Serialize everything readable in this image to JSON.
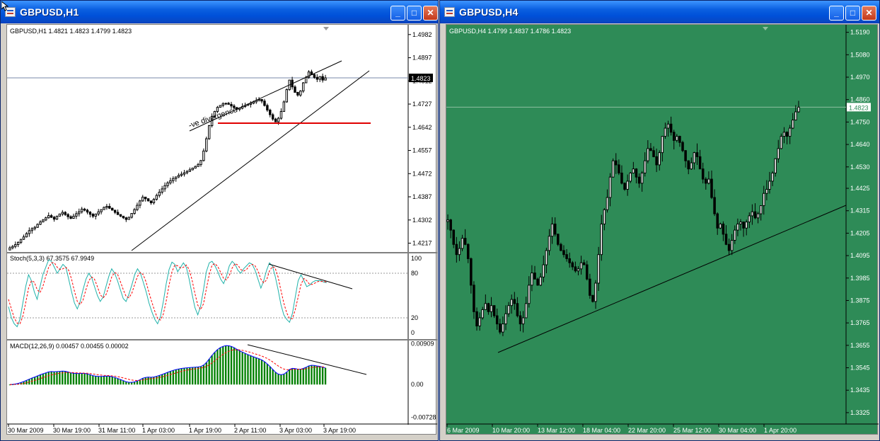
{
  "windows": [
    {
      "title": "GBPUSD,H1",
      "buttons": [
        "minimize",
        "maximize",
        "close"
      ]
    },
    {
      "title": "GBPUSD,H4",
      "buttons": [
        "minimize",
        "maximize",
        "close"
      ]
    }
  ],
  "chart_data": [
    {
      "type": "candlestick",
      "symbol_label": "GBPUSD,H1  1.4821 1.4823 1.4799 1.4823",
      "y_ticks": [
        "1.4982",
        "1.4897",
        "1.4812",
        "1.4727",
        "1.4642",
        "1.4557",
        "1.4472",
        "1.4387",
        "1.4302",
        "1.4217"
      ],
      "ylim": [
        1.4195,
        1.501
      ],
      "current_price_label": "1.4823",
      "current_price": 1.4823,
      "x_ticks": [
        "30 Mar 2009",
        "30 Mar 19:00",
        "31 Mar 11:00",
        "1 Apr 03:00",
        "1 Apr 19:00",
        "2 Apr 11:00",
        "3 Apr 03:00",
        "3 Apr 19:00"
      ],
      "annotation": "-ve divergence",
      "support_level": 1.4657,
      "closes": [
        1.42,
        1.4205,
        1.4212,
        1.422,
        1.4231,
        1.424,
        1.4252,
        1.4263,
        1.427,
        1.4275,
        1.4286,
        1.4295,
        1.4302,
        1.431,
        1.4318,
        1.4312,
        1.4305,
        1.4316,
        1.4324,
        1.433,
        1.4322,
        1.4314,
        1.4308,
        1.4316,
        1.4325,
        1.4332,
        1.4342,
        1.4338,
        1.4331,
        1.4323,
        1.4316,
        1.4324,
        1.4332,
        1.434,
        1.4348,
        1.4352,
        1.4345,
        1.4338,
        1.433,
        1.4322,
        1.4316,
        1.431,
        1.4304,
        1.4312,
        1.4326,
        1.434,
        1.4356,
        1.4372,
        1.4386,
        1.438,
        1.4372,
        1.4365,
        1.4378,
        1.4392,
        1.4404,
        1.4416,
        1.4428,
        1.4438,
        1.4446,
        1.4454,
        1.446,
        1.4466,
        1.447,
        1.4475,
        1.448,
        1.4486,
        1.4492,
        1.4498,
        1.4505,
        1.452,
        1.4555,
        1.46,
        1.4648,
        1.4682,
        1.47,
        1.4715,
        1.4722,
        1.4728,
        1.473,
        1.4726,
        1.472,
        1.4714,
        1.4708,
        1.4712,
        1.4718,
        1.4722,
        1.4726,
        1.473,
        1.4735,
        1.474,
        1.4744,
        1.4738,
        1.4722,
        1.4705,
        1.4688,
        1.4672,
        1.4662,
        1.4675,
        1.47,
        1.4735,
        1.478,
        1.4815,
        1.479,
        1.477,
        1.476,
        1.4775,
        1.4805,
        1.4825,
        1.4845,
        1.4835,
        1.4825,
        1.4818,
        1.4828,
        1.4815,
        1.4823
      ],
      "indicators": [
        {
          "name": "Stoch(5,3,3) 67.3575 67.9949",
          "y_ticks": [
            "100",
            "80",
            "20",
            "0"
          ],
          "ylim": [
            0,
            100
          ],
          "levels": [
            80,
            20
          ],
          "main": [
            35,
            20,
            12,
            8,
            18,
            40,
            62,
            78,
            70,
            55,
            45,
            62,
            78,
            88,
            98,
            96,
            88,
            80,
            86,
            92,
            88,
            72,
            55,
            40,
            32,
            42,
            58,
            72,
            80,
            74,
            62,
            50,
            42,
            48,
            62,
            76,
            86,
            80,
            70,
            58,
            46,
            42,
            52,
            64,
            78,
            86,
            80,
            68,
            55,
            40,
            28,
            18,
            12,
            22,
            42,
            66,
            85,
            95,
            92,
            82,
            88,
            94,
            88,
            72,
            52,
            34,
            24,
            36,
            58,
            82,
            94,
            96,
            90,
            82,
            72,
            66,
            76,
            90,
            96,
            92,
            84,
            80,
            86,
            90,
            94,
            92,
            84,
            72,
            60,
            70,
            84,
            94,
            90,
            76,
            58,
            38,
            24,
            18,
            14,
            26,
            48,
            70,
            78,
            70,
            62,
            64,
            68,
            70,
            70,
            70,
            68,
            67.36
          ],
          "signal": [
            45,
            32,
            20,
            13,
            12,
            22,
            40,
            60,
            70,
            68,
            58,
            54,
            62,
            76,
            88,
            94,
            94,
            88,
            85,
            86,
            88,
            84,
            72,
            56,
            42,
            38,
            44,
            58,
            70,
            75,
            72,
            62,
            51,
            47,
            51,
            62,
            75,
            81,
            79,
            69,
            58,
            49,
            47,
            53,
            65,
            76,
            81,
            78,
            68,
            54,
            41,
            29,
            19,
            17,
            25,
            43,
            64,
            82,
            91,
            90,
            87,
            88,
            91,
            85,
            71,
            53,
            37,
            31,
            39,
            59,
            78,
            91,
            93,
            89,
            81,
            73,
            71,
            77,
            87,
            93,
            91,
            85,
            83,
            85,
            90,
            92,
            90,
            83,
            72,
            67,
            71,
            83,
            89,
            87,
            75,
            57,
            40,
            27,
            19,
            19,
            31,
            48,
            65,
            73,
            70,
            65,
            65,
            67,
            69,
            69,
            69,
            67.99
          ]
        },
        {
          "name": "MACD(12,26,9) 0.00457 0.00455 0.00002",
          "y_ticks": [
            "0.00909",
            "0.00",
            "-0.00728"
          ],
          "ylim": [
            -0.0075,
            0.0093
          ]
        }
      ]
    },
    {
      "type": "candlestick",
      "symbol_label": "GBPUSD,H4  1.4799 1.4837 1.4786 1.4823",
      "y_ticks": [
        "1.5190",
        "1.5080",
        "1.4970",
        "1.4860",
        "1.4750",
        "1.4640",
        "1.4530",
        "1.4425",
        "1.4315",
        "1.4205",
        "1.4095",
        "1.3985",
        "1.3875",
        "1.3765",
        "1.3655",
        "1.3545",
        "1.3435",
        "1.3325"
      ],
      "ylim": [
        1.329,
        1.522
      ],
      "current_price_label": "1.4823",
      "current_price": 1.4823,
      "x_ticks": [
        "6 Mar 2009",
        "10 Mar 20:00",
        "13 Mar 12:00",
        "18 Mar 04:00",
        "22 Mar 20:00",
        "25 Mar 12:00",
        "30 Mar 04:00",
        "1 Apr 20:00"
      ],
      "closes": [
        1.427,
        1.422,
        1.415,
        1.41,
        1.413,
        1.418,
        1.415,
        1.408,
        1.395,
        1.382,
        1.375,
        1.379,
        1.383,
        1.386,
        1.382,
        1.385,
        1.38,
        1.376,
        1.372,
        1.376,
        1.381,
        1.385,
        1.388,
        1.386,
        1.38,
        1.376,
        1.379,
        1.386,
        1.395,
        1.401,
        1.398,
        1.395,
        1.399,
        1.405,
        1.412,
        1.419,
        1.425,
        1.42,
        1.415,
        1.412,
        1.41,
        1.408,
        1.406,
        1.404,
        1.402,
        1.403,
        1.406,
        1.405,
        1.398,
        1.39,
        1.387,
        1.396,
        1.41,
        1.425,
        1.432,
        1.438,
        1.448,
        1.456,
        1.454,
        1.45,
        1.445,
        1.442,
        1.446,
        1.45,
        1.452,
        1.448,
        1.445,
        1.45,
        1.456,
        1.462,
        1.461,
        1.458,
        1.454,
        1.46,
        1.468,
        1.472,
        1.474,
        1.47,
        1.466,
        1.468,
        1.465,
        1.461,
        1.456,
        1.452,
        1.455,
        1.46,
        1.458,
        1.452,
        1.447,
        1.445,
        1.447,
        1.438,
        1.43,
        1.423,
        1.425,
        1.42,
        1.415,
        1.412,
        1.417,
        1.422,
        1.425,
        1.426,
        1.423,
        1.426,
        1.429,
        1.431,
        1.428,
        1.43,
        1.434,
        1.44,
        1.442,
        1.446,
        1.45,
        1.457,
        1.462,
        1.468,
        1.47,
        1.468,
        1.472,
        1.476,
        1.48,
        1.4823
      ]
    }
  ]
}
